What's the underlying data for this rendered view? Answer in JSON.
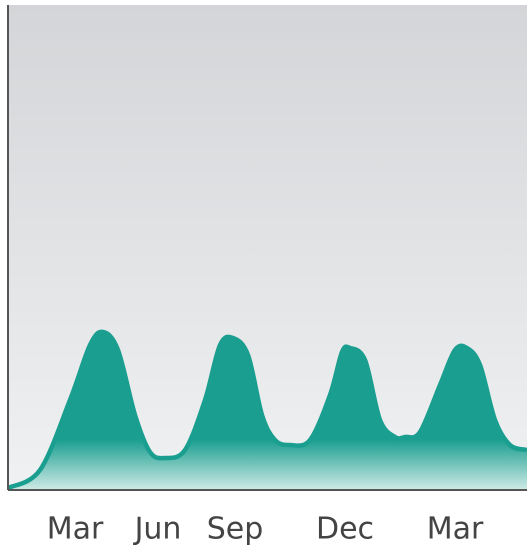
{
  "chart_data": {
    "type": "area",
    "x": [
      0,
      32,
      62,
      82,
      95,
      110,
      127,
      142,
      157,
      177,
      197,
      212,
      225,
      240,
      254,
      267,
      282,
      302,
      322,
      334,
      342,
      357,
      372,
      387,
      397,
      412,
      432,
      447,
      459,
      472,
      487,
      502,
      519
    ],
    "series": [
      {
        "color": "#1a9e8f",
        "values": [
          2,
          20,
          90,
          145,
          158,
          140,
          75,
          38,
          32,
          40,
          90,
          145,
          152,
          135,
          75,
          50,
          45,
          50,
          95,
          138,
          142,
          130,
          70,
          53,
          53,
          58,
          105,
          140,
          142,
          125,
          70,
          45,
          40
        ]
      }
    ],
    "xlim": [
      0,
      519
    ],
    "ylim": [
      0,
      485
    ],
    "xticks": [
      {
        "value": 67,
        "label": "Mar"
      },
      {
        "value": 150,
        "label": "Jun"
      },
      {
        "value": 227,
        "label": "Sep"
      },
      {
        "value": 337,
        "label": "Dec"
      },
      {
        "value": 447,
        "label": "Mar"
      }
    ]
  }
}
